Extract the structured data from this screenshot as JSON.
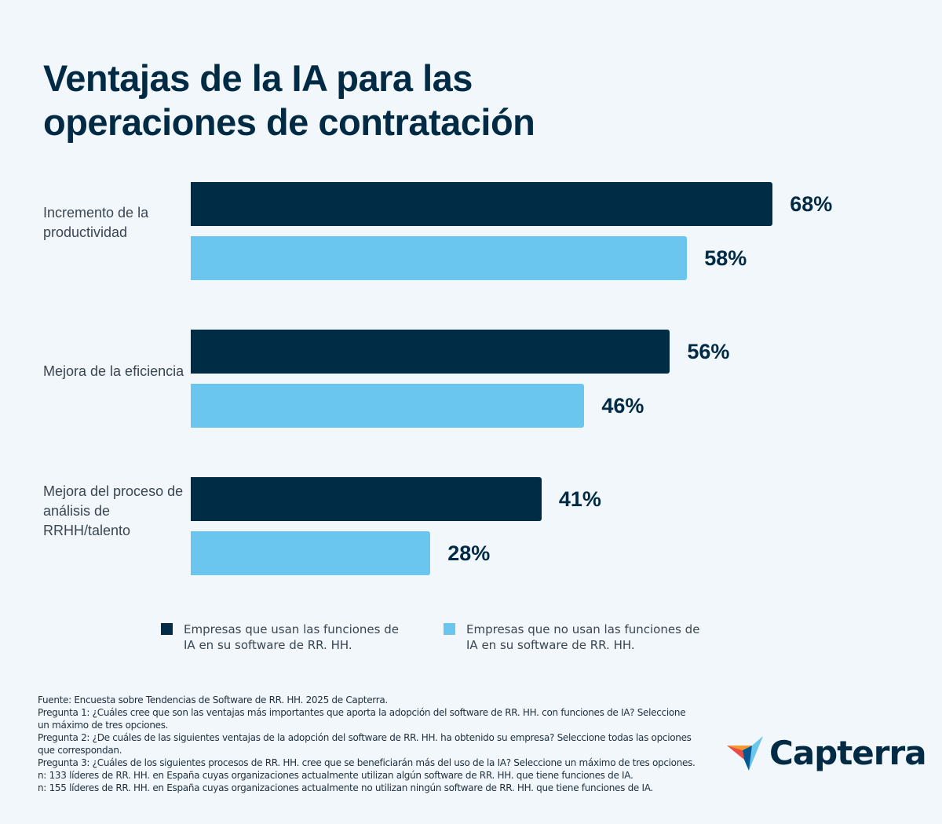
{
  "title": "Ventajas de la IA para las operaciones de contratación",
  "chart_data": {
    "type": "bar",
    "orientation": "horizontal",
    "title": "Ventajas de la IA para las operaciones de contratación",
    "categories": [
      "Incremento de la productividad",
      "Mejora de la eficiencia",
      "Mejora del proceso de análisis de RRHH/talento"
    ],
    "series": [
      {
        "name": "Empresas que usan las funciones de IA en su software de RR. HH.",
        "color": "#012c45",
        "values": [
          68,
          56,
          41
        ],
        "labels": [
          "68%",
          "56%",
          "41%"
        ]
      },
      {
        "name": "Empresas que no usan las funciones de IA en su software de RR. HH.",
        "color": "#6ac6ee",
        "values": [
          58,
          46,
          28
        ],
        "labels": [
          "58%",
          "46%",
          "28%"
        ]
      }
    ],
    "unit": "%",
    "legend": "bottom",
    "grid": false
  },
  "footer": [
    "Fuente: Encuesta sobre Tendencias de Software de RR. HH. 2025 de Capterra.",
    "Pregunta 1: ¿Cuáles cree que son las ventajas más importantes que aporta la adopción del software de RR. HH. con funciones de IA? Seleccione un máximo de tres opciones.",
    "Pregunta 2: ¿De cuáles de las siguientes ventajas de la adopción del software de RR. HH. ha obtenido su empresa? Seleccione todas las opciones que correspondan.",
    "Pregunta 3: ¿Cuáles de los siguientes procesos de RR. HH. cree que se beneficiarán más del uso de la IA? Seleccione un máximo de tres opciones.",
    "n: 133 líderes de RR. HH. en España cuyas organizaciones actualmente utilizan algún software de RR. HH. que tiene funciones de IA.",
    "n: 155 líderes de RR. HH. en España cuyas organizaciones actualmente no utilizan ningún software de RR. HH. que tiene funciones de IA."
  ],
  "logo": {
    "text": "Capterra"
  }
}
